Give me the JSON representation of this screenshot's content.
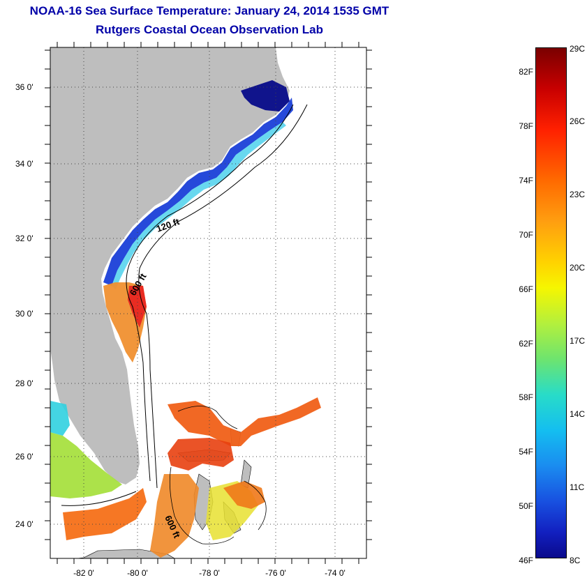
{
  "header": {
    "title": "NOAA-16 Sea Surface Temperature:  January 24, 2014 1535 GMT",
    "subtitle": "Rutgers Coastal Ocean Observation Lab"
  },
  "map": {
    "lat_labels": [
      "36 0'",
      "34 0'",
      "32 0'",
      "30 0'",
      "28 0'",
      "26 0'",
      "24 0'"
    ],
    "lon_labels": [
      "-82 0'",
      "-80 0'",
      "-78 0'",
      "-76 0'",
      "-74 0'"
    ],
    "contours": [
      "120 ft",
      "600 ft",
      "600 ft"
    ],
    "colors": {
      "land": "#bebebe",
      "border": "#000000",
      "grid": "#555555"
    }
  },
  "colorbar": {
    "fahrenheit": [
      "82F",
      "78F",
      "74F",
      "70F",
      "66F",
      "62F",
      "58F",
      "54F",
      "50F",
      "46F"
    ],
    "celsius": [
      "29C",
      "26C",
      "23C",
      "20C",
      "17C",
      "14C",
      "11C",
      "8C"
    ]
  }
}
